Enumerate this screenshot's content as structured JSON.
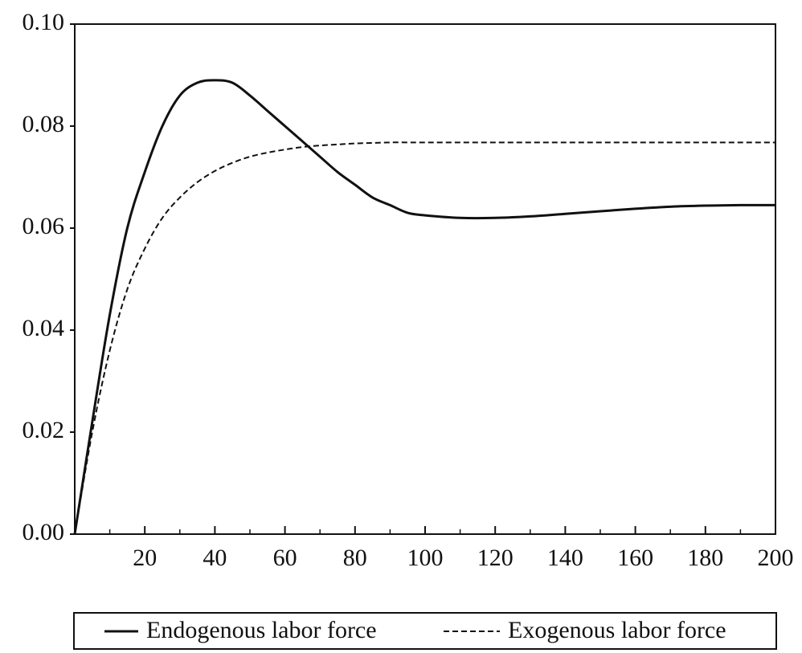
{
  "chart_data": {
    "type": "line",
    "x": [
      0,
      5,
      10,
      15,
      20,
      25,
      30,
      35,
      40,
      45,
      50,
      55,
      60,
      65,
      70,
      75,
      80,
      85,
      90,
      95,
      100,
      110,
      120,
      130,
      140,
      150,
      160,
      170,
      180,
      190,
      200
    ],
    "series": [
      {
        "name": "Endogenous labor force",
        "color": "#111111",
        "dash": "solid",
        "values": [
          0,
          0.022,
          0.043,
          0.06,
          0.071,
          0.08,
          0.086,
          0.0885,
          0.089,
          0.0885,
          0.086,
          0.083,
          0.08,
          0.077,
          0.074,
          0.071,
          0.0685,
          0.066,
          0.0645,
          0.063,
          0.0625,
          0.062,
          0.062,
          0.0623,
          0.0628,
          0.0633,
          0.0638,
          0.0642,
          0.0644,
          0.0645,
          0.0645
        ]
      },
      {
        "name": "Exogenous labor force",
        "color": "#111111",
        "dash": "dashed",
        "values": [
          0,
          0.02,
          0.036,
          0.048,
          0.056,
          0.062,
          0.066,
          0.069,
          0.0712,
          0.0728,
          0.074,
          0.0748,
          0.0754,
          0.0759,
          0.0762,
          0.0764,
          0.0766,
          0.0767,
          0.0768,
          0.0768,
          0.0768,
          0.0768,
          0.0768,
          0.0768,
          0.0768,
          0.0768,
          0.0768,
          0.0768,
          0.0768,
          0.0768,
          0.0768
        ]
      }
    ],
    "xlim": [
      0,
      200
    ],
    "xticks": [
      20,
      40,
      60,
      80,
      100,
      120,
      140,
      160,
      180,
      200
    ],
    "xminorticks": [
      10,
      30,
      50,
      70,
      90,
      110,
      130,
      150,
      170,
      190
    ],
    "ylim": [
      0,
      0.1
    ],
    "yticks": [
      {
        "value": 0,
        "label": "0.00"
      },
      {
        "value": 0.02,
        "label": "0.02"
      },
      {
        "value": 0.04,
        "label": "0.04"
      },
      {
        "value": 0.06,
        "label": "0.06"
      },
      {
        "value": 0.08,
        "label": "0.08"
      },
      {
        "value": 0.1,
        "label": "0.10"
      }
    ],
    "legend": "bottom",
    "grid": false
  }
}
